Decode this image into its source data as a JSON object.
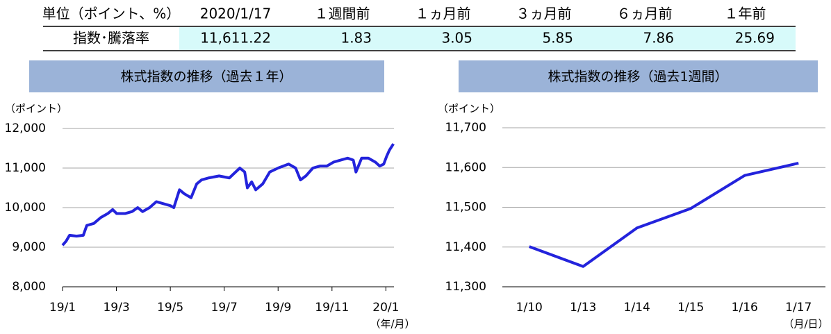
{
  "table": {
    "header": [
      "単位（ポイント、%）",
      "2020/1/17",
      "１週間前",
      "１ヵ月前",
      "３ヵ月前",
      "６ヵ月前",
      "１年前"
    ],
    "rows": [
      [
        "指数･騰落率",
        "11,611.22",
        "1.83",
        "3.05",
        "5.85",
        "7.86",
        "25.69"
      ]
    ]
  },
  "chart_data": [
    {
      "type": "line",
      "title": "株式指数の推移（過去１年）",
      "y_label": "（ポイント）",
      "x_label": "（年/月）",
      "color": "#2323dc",
      "grid": true,
      "x": [
        0,
        0.13,
        0.26,
        0.52,
        0.77,
        0.9,
        1.16,
        1.42,
        1.68,
        1.86,
        2.01,
        2.32,
        2.58,
        2.79,
        2.97,
        3.23,
        3.48,
        3.74,
        4.0,
        4.13,
        4.34,
        4.52,
        4.77,
        4.98,
        5.16,
        5.42,
        5.81,
        6.19,
        6.58,
        6.76,
        6.86,
        7.02,
        7.17,
        7.43,
        7.69,
        8.0,
        8.39,
        8.65,
        8.83,
        9.03,
        9.29,
        9.55,
        9.81,
        10.06,
        10.32,
        10.58,
        10.79,
        10.89,
        11.1,
        11.35,
        11.61,
        11.77,
        11.92,
        12.03,
        12.13,
        12.28
      ],
      "values": [
        9050,
        9150,
        9300,
        9280,
        9300,
        9550,
        9600,
        9750,
        9850,
        9950,
        9850,
        9850,
        9900,
        10000,
        9900,
        10000,
        10150,
        10100,
        10050,
        10000,
        10450,
        10350,
        10250,
        10600,
        10700,
        10750,
        10800,
        10750,
        11000,
        10900,
        10500,
        10650,
        10450,
        10600,
        10900,
        11000,
        11100,
        11000,
        10700,
        10800,
        11000,
        11050,
        11050,
        11150,
        11200,
        11250,
        11200,
        10900,
        11250,
        11250,
        11150,
        11050,
        11100,
        11300,
        11450,
        11611
      ],
      "xlim": [
        0,
        12.3
      ],
      "xticks": [
        {
          "value": 0,
          "label": "19/1"
        },
        {
          "value": 2,
          "label": "19/3"
        },
        {
          "value": 4,
          "label": "19/5"
        },
        {
          "value": 6,
          "label": "19/7"
        },
        {
          "value": 8,
          "label": "19/9"
        },
        {
          "value": 10,
          "label": "19/11"
        },
        {
          "value": 12,
          "label": "20/1"
        }
      ],
      "ylim": [
        8000,
        12000
      ],
      "yticks": [
        {
          "value": 8000,
          "label": "8,000"
        },
        {
          "value": 9000,
          "label": "9,000"
        },
        {
          "value": 10000,
          "label": "10,000"
        },
        {
          "value": 11000,
          "label": "11,000"
        },
        {
          "value": 12000,
          "label": "12,000"
        }
      ]
    },
    {
      "type": "line",
      "title": "株式指数の推移（過去1週間）",
      "y_label": "（ポイント）",
      "x_label": "（月/日）",
      "color": "#2323dc",
      "grid": true,
      "categories": [
        "1/10",
        "1/13",
        "1/14",
        "1/15",
        "1/16",
        "1/17"
      ],
      "values": [
        11401,
        11351,
        11448,
        11497,
        11580,
        11611
      ],
      "ylim": [
        11300,
        11700
      ],
      "yticks": [
        {
          "value": 11300,
          "label": "11,300"
        },
        {
          "value": 11400,
          "label": "11,400"
        },
        {
          "value": 11500,
          "label": "11,500"
        },
        {
          "value": 11600,
          "label": "11,600"
        },
        {
          "value": 11700,
          "label": "11,700"
        }
      ]
    }
  ]
}
